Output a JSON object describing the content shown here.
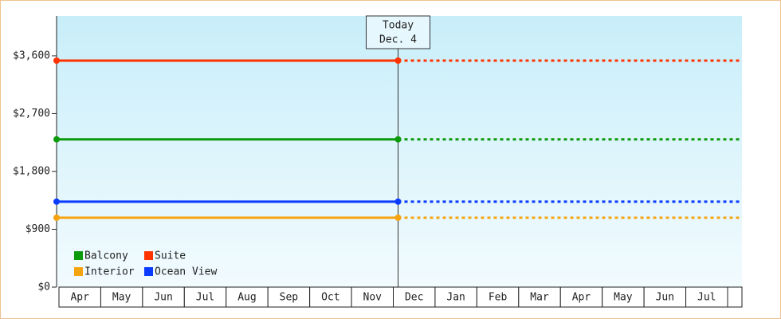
{
  "chart_data": {
    "type": "line",
    "categories": [
      "Apr",
      "May",
      "Jun",
      "Jul",
      "Aug",
      "Sep",
      "Oct",
      "Nov",
      "Dec",
      "Jan",
      "Feb",
      "Mar",
      "Apr",
      "May",
      "Jun",
      "Jul"
    ],
    "series": [
      {
        "name": "Balcony",
        "color": "#0a9a0a",
        "value": 2300
      },
      {
        "name": "Suite",
        "color": "#ff3300",
        "value": 3525
      },
      {
        "name": "Interior",
        "color": "#f5a30f",
        "value": 1080
      },
      {
        "name": "Ocean View",
        "color": "#0a3cff",
        "value": 1330
      }
    ],
    "ylim": [
      0,
      4220
    ],
    "yticks": [
      {
        "value": 0,
        "label": "$0"
      },
      {
        "value": 900,
        "label": "$900"
      },
      {
        "value": 1800,
        "label": "$1,800"
      },
      {
        "value": 2700,
        "label": "$2,700"
      },
      {
        "value": 3600,
        "label": "$3,600"
      }
    ],
    "today": {
      "title": "Today",
      "date": "Dec. 4"
    },
    "legend": "lower left"
  }
}
